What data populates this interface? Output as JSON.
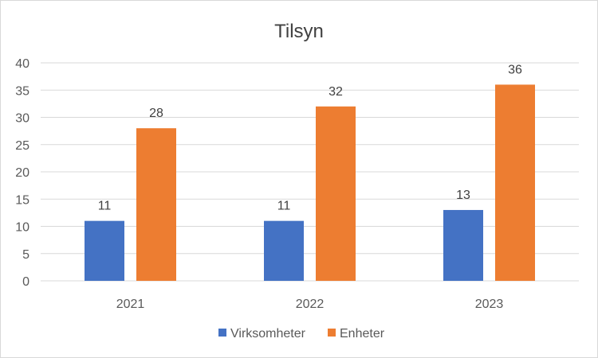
{
  "chart_data": {
    "type": "bar",
    "title": "Tilsyn",
    "categories": [
      "2021",
      "2022",
      "2023"
    ],
    "series": [
      {
        "name": "Virksomheter",
        "values": [
          11,
          11,
          13
        ],
        "color": "#4472c4"
      },
      {
        "name": "Enheter",
        "values": [
          28,
          32,
          36
        ],
        "color": "#ed7d31"
      }
    ],
    "yticks": [
      "0",
      "5",
      "10",
      "15",
      "20",
      "25",
      "30",
      "35",
      "40"
    ],
    "ylim": [
      0,
      40
    ],
    "grid": true,
    "gridColor": "#d9d9d9",
    "legend_position": "bottom",
    "data_labels": true
  }
}
